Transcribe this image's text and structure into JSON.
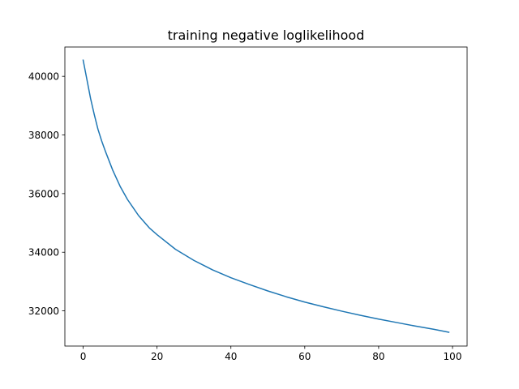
{
  "chart_data": {
    "type": "line",
    "title": "training negative loglikelihood",
    "xlabel": "",
    "ylabel": "",
    "xlim": [
      -4.95,
      103.95
    ],
    "ylim": [
      30800,
      41000
    ],
    "xticks": [
      0,
      20,
      40,
      60,
      80,
      100
    ],
    "xtick_labels": [
      "0",
      "20",
      "40",
      "60",
      "80",
      "100"
    ],
    "yticks": [
      32000,
      34000,
      36000,
      38000,
      40000
    ],
    "ytick_labels": [
      "32000",
      "34000",
      "36000",
      "38000",
      "40000"
    ],
    "grid": false,
    "legend": "none",
    "series": [
      {
        "color": "#1f77b4",
        "x": [
          0,
          1,
          2,
          3,
          4,
          5,
          6,
          8,
          10,
          12,
          15,
          18,
          20,
          25,
          30,
          35,
          40,
          45,
          50,
          55,
          60,
          65,
          70,
          75,
          80,
          85,
          90,
          95,
          99
        ],
        "y": [
          40550,
          39900,
          39250,
          38700,
          38200,
          37800,
          37450,
          36800,
          36250,
          35800,
          35250,
          34820,
          34600,
          34100,
          33720,
          33400,
          33130,
          32900,
          32680,
          32480,
          32300,
          32140,
          31990,
          31850,
          31720,
          31600,
          31480,
          31370,
          31270
        ]
      }
    ]
  }
}
